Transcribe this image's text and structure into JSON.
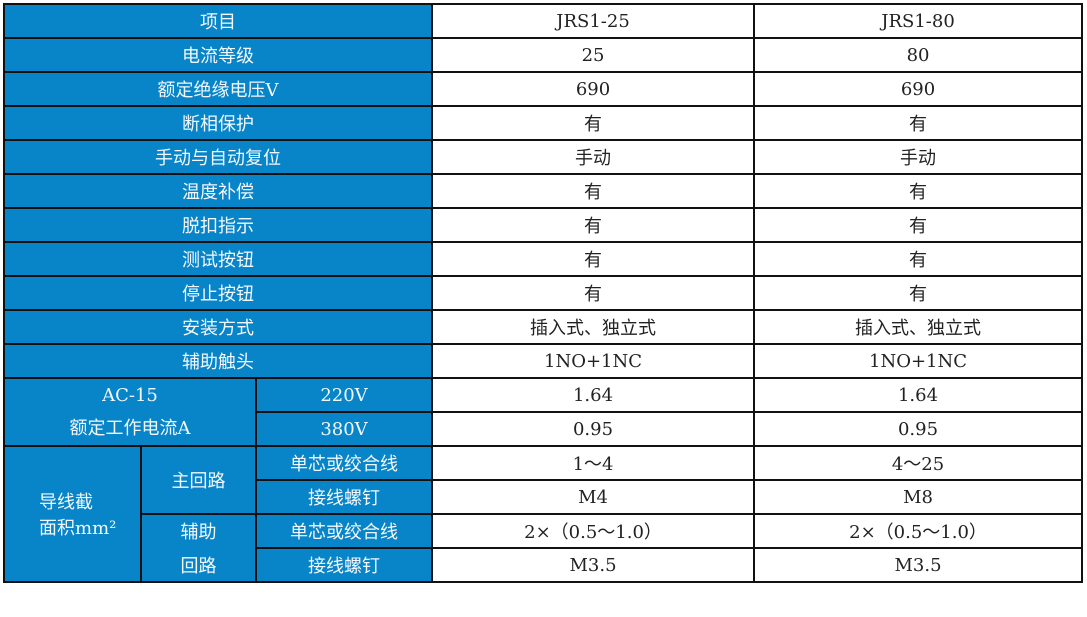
{
  "colors": {
    "header_bg": "#0884c8",
    "header_text": "#f2f8ff",
    "border": "#111111"
  },
  "header": {
    "label": "项目",
    "models": [
      "JRS1-25",
      "JRS1-80"
    ]
  },
  "rows": [
    {
      "label": "电流等级",
      "values": [
        "25",
        "80"
      ]
    },
    {
      "label": "额定绝缘电压V",
      "values": [
        "690",
        "690"
      ]
    },
    {
      "label": "断相保护",
      "values": [
        "有",
        "有"
      ]
    },
    {
      "label": "手动与自动复位",
      "values": [
        "手动",
        "手动"
      ]
    },
    {
      "label": "温度补偿",
      "values": [
        "有",
        "有"
      ]
    },
    {
      "label": "脱扣指示",
      "values": [
        "有",
        "有"
      ]
    },
    {
      "label": "测试按钮",
      "values": [
        "有",
        "有"
      ]
    },
    {
      "label": "停止按钮",
      "values": [
        "有",
        "有"
      ]
    },
    {
      "label": "安装方式",
      "values": [
        "插入式、独立式",
        "插入式、独立式"
      ]
    },
    {
      "label": "辅助触头",
      "values": [
        "1NO+1NC",
        "1NO+1NC"
      ]
    }
  ],
  "ac15": {
    "label_line1": "AC-15",
    "label_line2": "额定工作电流A",
    "rows": [
      {
        "label": "220V",
        "values": [
          "1.64",
          "1.64"
        ]
      },
      {
        "label": "380V",
        "values": [
          "0.95",
          "0.95"
        ]
      }
    ]
  },
  "wire": {
    "label_line1": "导线截",
    "label_line2": "面积mm²",
    "main": {
      "label": "主回路",
      "rows": [
        {
          "label": "单芯或绞合线",
          "values": [
            "1～4",
            "4～25"
          ]
        },
        {
          "label": "接线螺钉",
          "values": [
            "M4",
            "M8"
          ]
        }
      ]
    },
    "aux": {
      "label_line1": "辅助",
      "label_line2": "回路",
      "rows": [
        {
          "label": "单芯或绞合线",
          "values": [
            "2×（0.5～1.0）",
            "2×（0.5～1.0）"
          ]
        },
        {
          "label": "接线螺钉",
          "values": [
            "M3.5",
            "M3.5"
          ]
        }
      ]
    }
  }
}
